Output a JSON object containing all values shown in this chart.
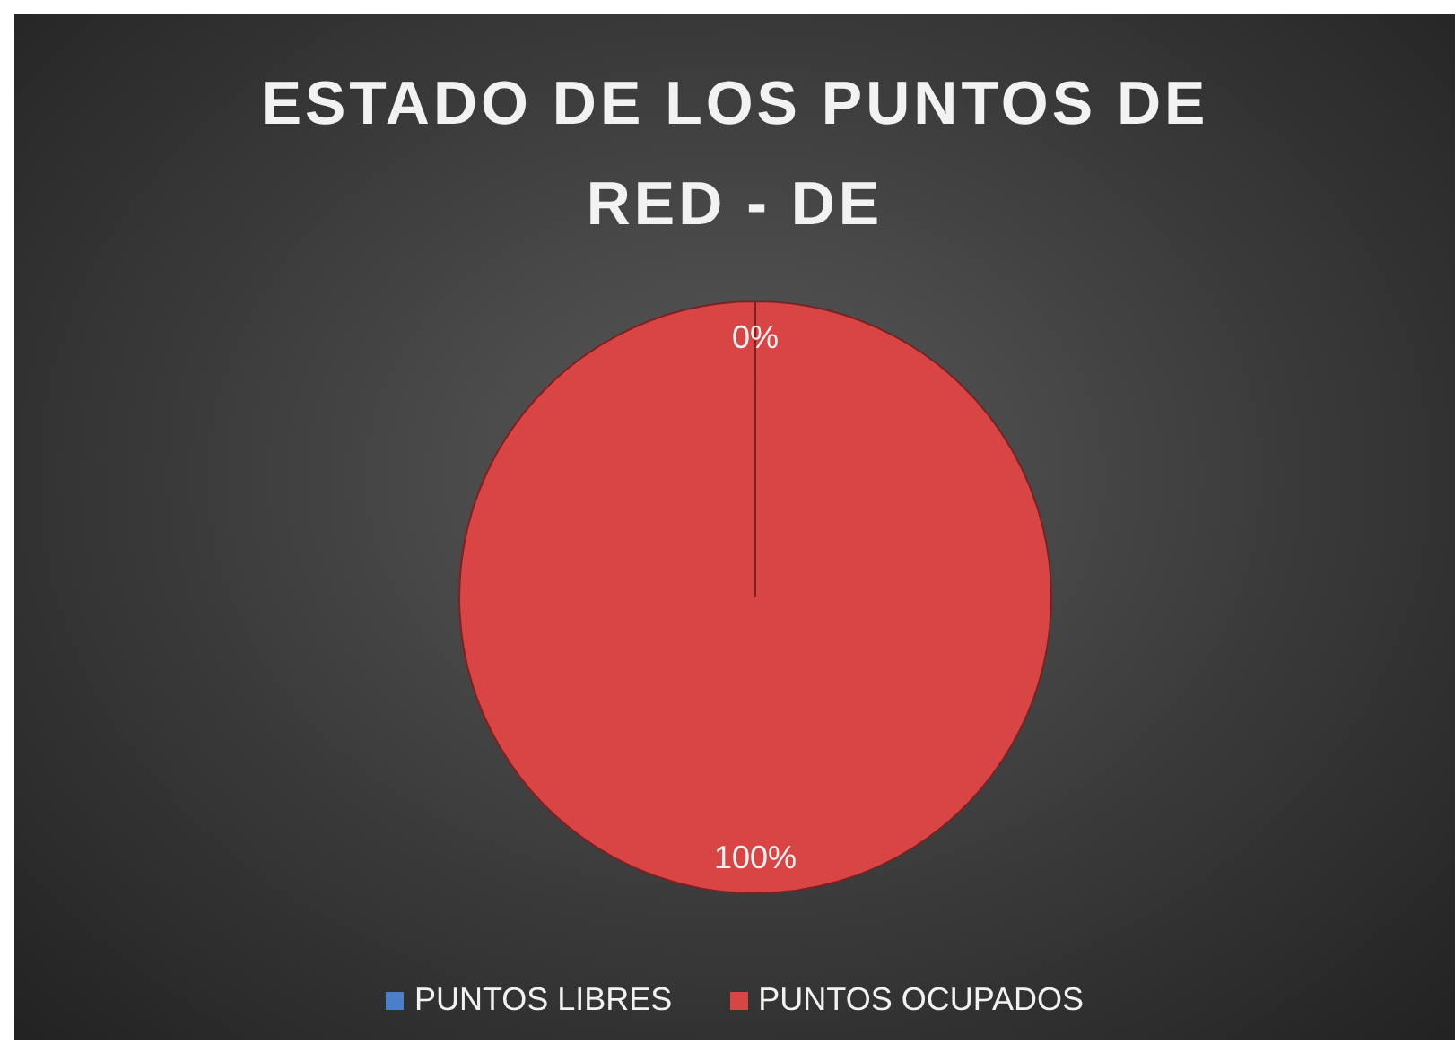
{
  "chart_data": {
    "type": "pie",
    "title": "ESTADO DE LOS PUNTOS DE RED - DE",
    "categories": [
      "PUNTOS LIBRES",
      "PUNTOS OCUPADOS"
    ],
    "values": [
      0,
      100
    ],
    "colors": [
      "#4a7fc9",
      "#d94444"
    ],
    "value_labels": [
      "0%",
      "100%"
    ],
    "legend": "bottom"
  }
}
